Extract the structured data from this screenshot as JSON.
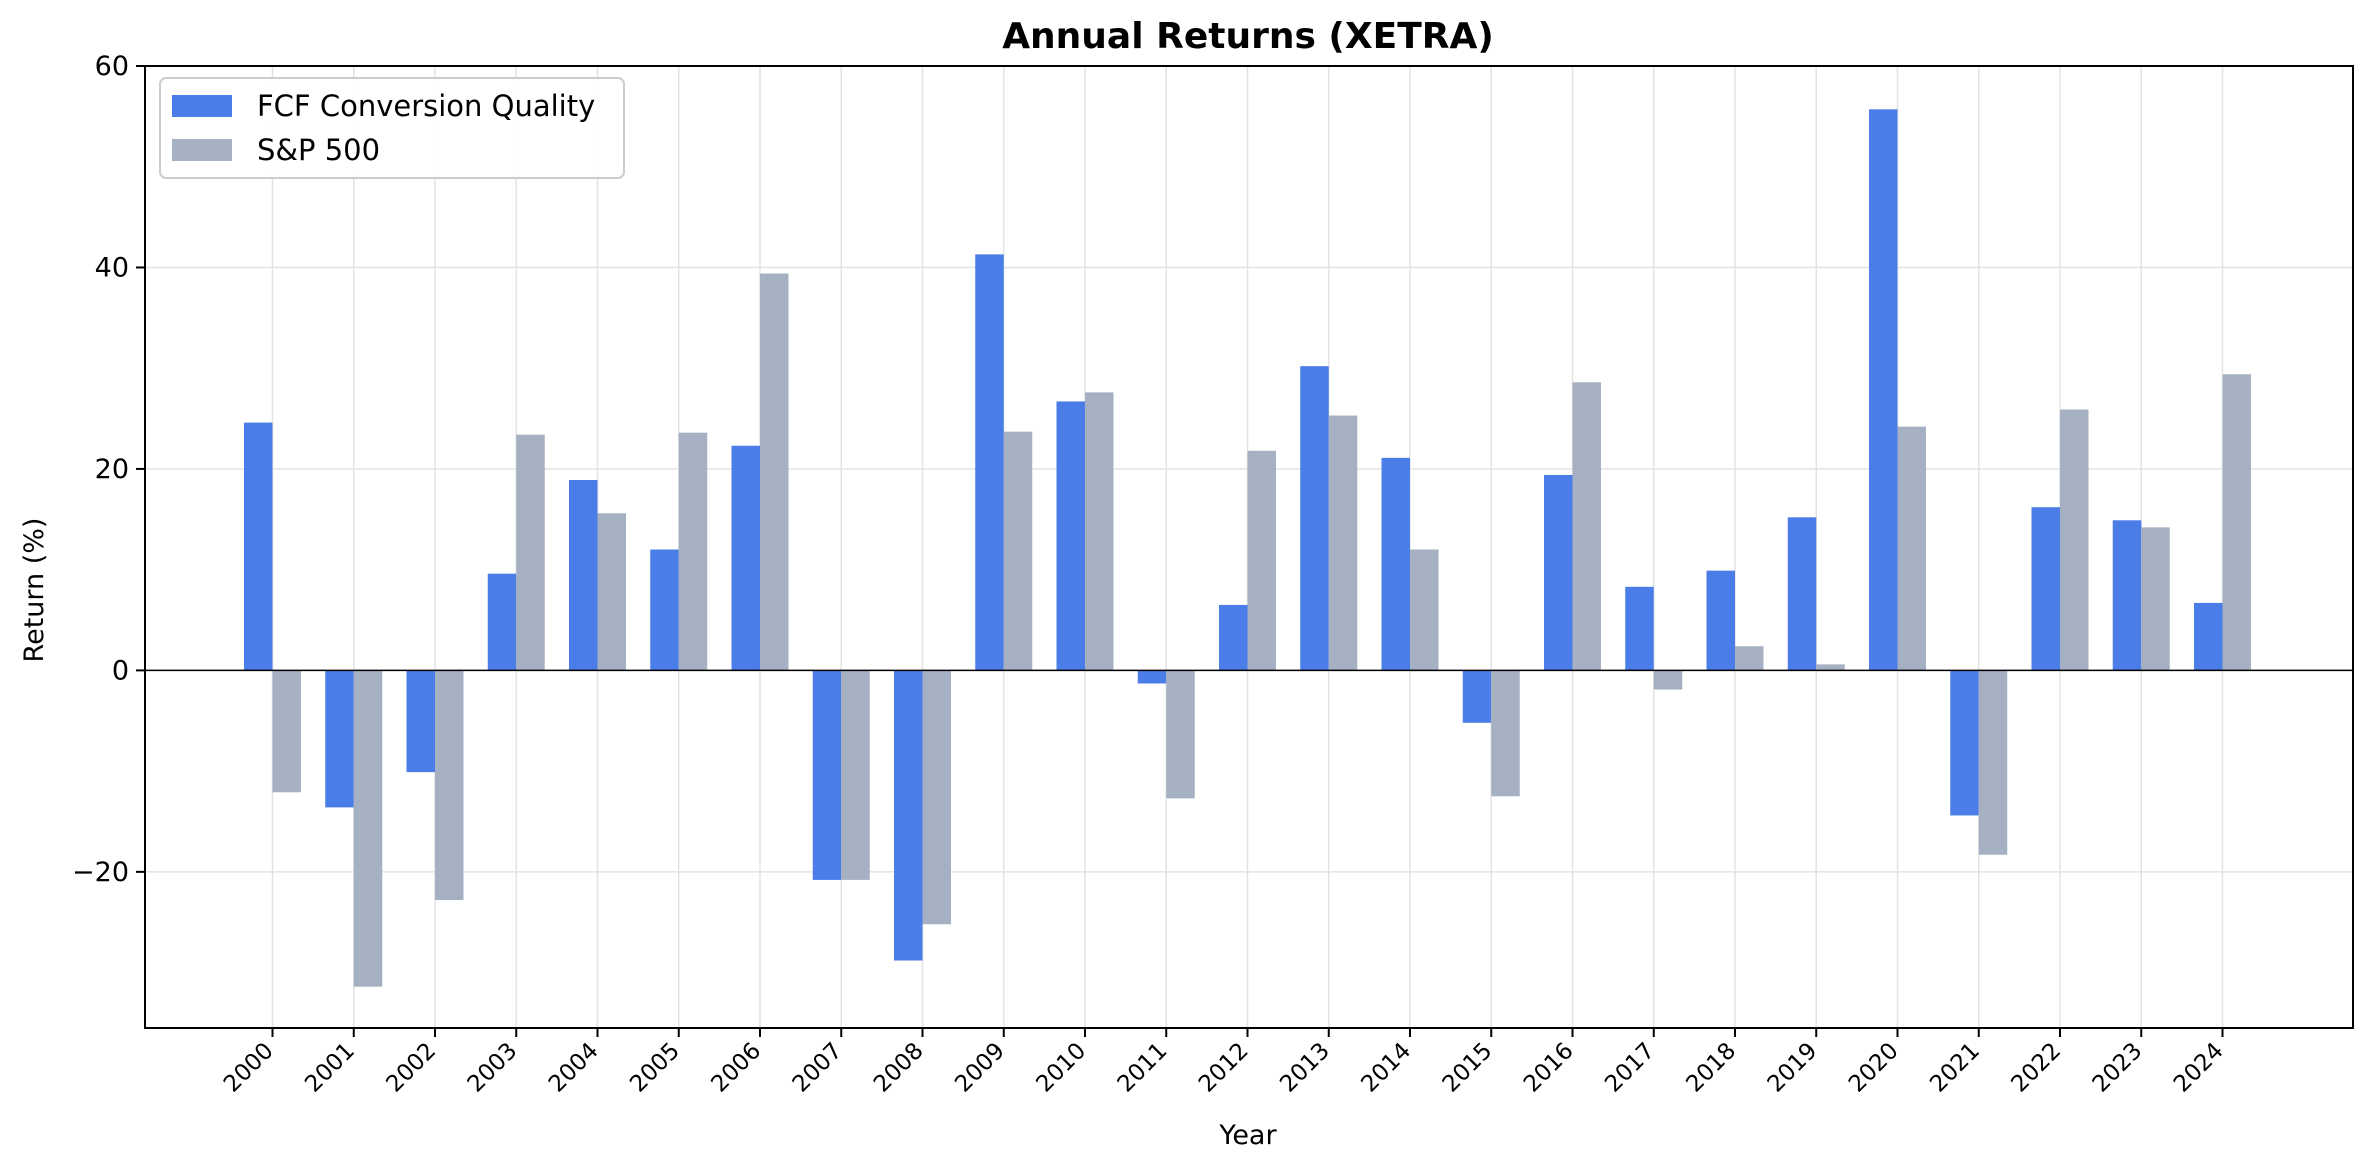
{
  "chart_data": {
    "type": "bar",
    "title": "Annual Returns (XETRA)",
    "xlabel": "Year",
    "ylabel": "Return (%)",
    "ylim": [
      -35.5,
      60
    ],
    "yticks": [
      -20,
      0,
      20,
      40,
      60
    ],
    "ytick_labels": [
      "−20",
      "0",
      "20",
      "40",
      "60"
    ],
    "grid": true,
    "legend_position": "top-left",
    "categories": [
      "2000",
      "2001",
      "2002",
      "2003",
      "2004",
      "2005",
      "2006",
      "2007",
      "2008",
      "2009",
      "2010",
      "2011",
      "2012",
      "2013",
      "2014",
      "2015",
      "2016",
      "2017",
      "2018",
      "2019",
      "2020",
      "2021",
      "2022",
      "2023",
      "2024"
    ],
    "series": [
      {
        "name": "FCF Conversion Quality",
        "color": "#4a7de8",
        "values": [
          24.6,
          -13.6,
          -10.1,
          9.6,
          18.9,
          12.0,
          22.3,
          -20.8,
          -28.8,
          41.3,
          26.7,
          -1.3,
          6.5,
          30.2,
          21.1,
          -5.2,
          19.4,
          8.3,
          9.9,
          15.2,
          55.7,
          -14.4,
          16.2,
          14.9,
          6.7
        ]
      },
      {
        "name": "S&P 500",
        "color": "#a5b0c2",
        "values": [
          -12.1,
          -31.4,
          -22.8,
          23.4,
          15.6,
          23.6,
          39.4,
          -20.8,
          -25.2,
          23.7,
          27.6,
          -12.7,
          21.8,
          25.3,
          12.0,
          -12.5,
          28.6,
          -1.9,
          2.4,
          0.6,
          24.2,
          -18.3,
          25.9,
          14.2,
          29.4
        ]
      }
    ]
  }
}
